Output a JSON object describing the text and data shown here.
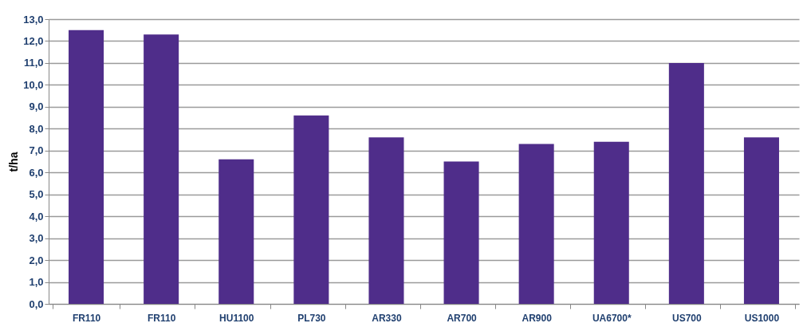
{
  "chart_data": {
    "type": "bar",
    "ylabel": "t/ha",
    "categories": [
      "FR110",
      "FR110",
      "HU1100",
      "PL730",
      "AR330",
      "AR700",
      "AR900",
      "UA6700*",
      "US700",
      "US1000"
    ],
    "values": [
      12.5,
      12.3,
      6.6,
      8.6,
      7.6,
      6.5,
      7.3,
      7.4,
      11.0,
      7.6
    ],
    "color": "#4f2d8a",
    "ylim": [
      0,
      13
    ],
    "yticks": [
      {
        "value": 0,
        "label": "0,0"
      },
      {
        "value": 1,
        "label": "1,0"
      },
      {
        "value": 2,
        "label": "2,0"
      },
      {
        "value": 3,
        "label": "3,0"
      },
      {
        "value": 4,
        "label": "4,0"
      },
      {
        "value": 5,
        "label": "5,0"
      },
      {
        "value": 6,
        "label": "6,0"
      },
      {
        "value": 7,
        "label": "7,0"
      },
      {
        "value": 8,
        "label": "8,0"
      },
      {
        "value": 9,
        "label": "9,0"
      },
      {
        "value": 10,
        "label": "10,0"
      },
      {
        "value": 11,
        "label": "11,0"
      },
      {
        "value": 12,
        "label": "12,0"
      },
      {
        "value": 13,
        "label": "13,0"
      }
    ],
    "grid": "y"
  }
}
